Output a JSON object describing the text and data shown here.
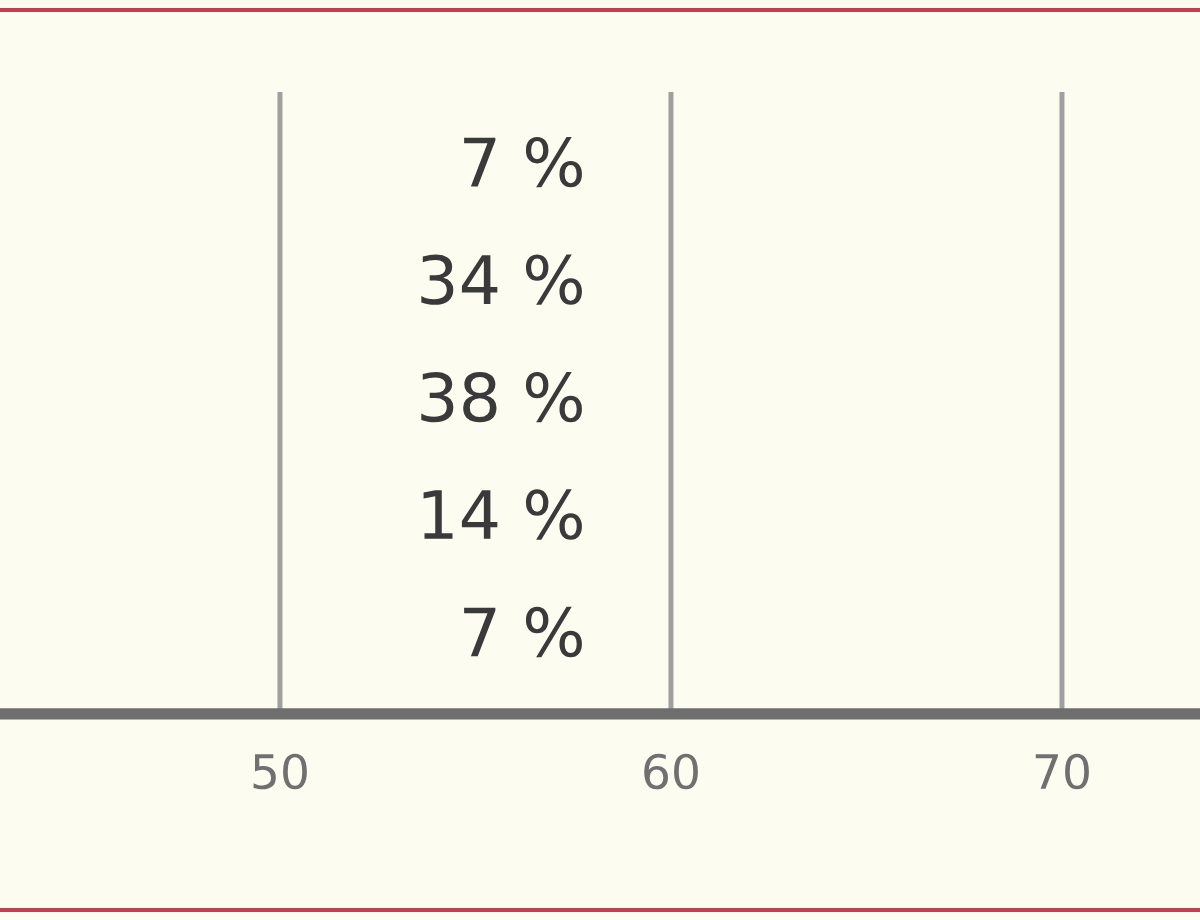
{
  "chart_data": {
    "type": "bar",
    "orientation": "horizontal",
    "categories": [
      null,
      null,
      null,
      null,
      null
    ],
    "values": [
      null,
      null,
      null,
      null,
      null
    ],
    "value_labels": [
      "7 %",
      "34 %",
      "38 %",
      "14 %",
      "7 %"
    ],
    "xlim": [
      42.84,
      73.53
    ],
    "xticks": [
      50,
      60,
      70
    ],
    "grid": "x",
    "tick_labels": "x"
  }
}
